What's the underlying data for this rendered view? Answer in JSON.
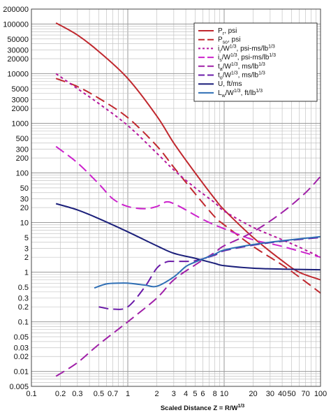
{
  "chart_data": {
    "type": "line",
    "title": "",
    "xlabel": {
      "main": "Scaled Distance   Z = R/W",
      "sup": "1/3"
    },
    "ylabel": "",
    "xscale": "log",
    "yscale": "log",
    "xlim": [
      0.1,
      100
    ],
    "ylim": [
      0.005,
      200000
    ],
    "grid": true,
    "legend_position": "top-right",
    "x_ticks": [
      {
        "value": 0.1,
        "label": "0.1"
      },
      {
        "value": 0.2,
        "label": "0.2"
      },
      {
        "value": 0.3,
        "label": "0.3"
      },
      {
        "value": 0.5,
        "label": "0.5"
      },
      {
        "value": 0.7,
        "label": "0.7"
      },
      {
        "value": 1,
        "label": "1"
      },
      {
        "value": 2,
        "label": "2"
      },
      {
        "value": 3,
        "label": "3"
      },
      {
        "value": 4,
        "label": "4"
      },
      {
        "value": 5,
        "label": "5"
      },
      {
        "value": 6,
        "label": "6"
      },
      {
        "value": 8,
        "label": "8"
      },
      {
        "value": 10,
        "label": "10"
      },
      {
        "value": 20,
        "label": "20"
      },
      {
        "value": 30,
        "label": "30"
      },
      {
        "value": 40,
        "label": "40"
      },
      {
        "value": 50,
        "label": "50"
      },
      {
        "value": 70,
        "label": "70"
      },
      {
        "value": 100,
        "label": "100"
      }
    ],
    "y_ticks": [
      {
        "value": 200000,
        "label": "200000"
      },
      {
        "value": 100000,
        "label": "100000"
      },
      {
        "value": 50000,
        "label": "50000"
      },
      {
        "value": 30000,
        "label": "30000"
      },
      {
        "value": 20000,
        "label": "20000"
      },
      {
        "value": 10000,
        "label": "10000"
      },
      {
        "value": 5000,
        "label": "5000"
      },
      {
        "value": 3000,
        "label": "3000"
      },
      {
        "value": 2000,
        "label": "2000"
      },
      {
        "value": 1000,
        "label": "1000"
      },
      {
        "value": 500,
        "label": "500"
      },
      {
        "value": 300,
        "label": "300"
      },
      {
        "value": 200,
        "label": "200"
      },
      {
        "value": 100,
        "label": "100"
      },
      {
        "value": 50,
        "label": "50"
      },
      {
        "value": 30,
        "label": "30"
      },
      {
        "value": 20,
        "label": "20"
      },
      {
        "value": 10,
        "label": "10"
      },
      {
        "value": 5,
        "label": "5"
      },
      {
        "value": 3,
        "label": "3"
      },
      {
        "value": 2,
        "label": "2"
      },
      {
        "value": 1,
        "label": "1"
      },
      {
        "value": 0.5,
        "label": "0.5"
      },
      {
        "value": 0.3,
        "label": "0.3"
      },
      {
        "value": 0.2,
        "label": "0.2"
      },
      {
        "value": 0.1,
        "label": "0.1"
      },
      {
        "value": 0.05,
        "label": "0.05"
      },
      {
        "value": 0.03,
        "label": "0.03"
      },
      {
        "value": 0.02,
        "label": "0.02"
      },
      {
        "value": 0.01,
        "label": "0.01"
      },
      {
        "value": 0.005,
        "label": "0.005"
      }
    ],
    "series": [
      {
        "key": "pr",
        "name": {
          "main": "P",
          "sub": "r",
          "rest": ", psi"
        },
        "color": "#c0282e",
        "dash": "solid",
        "points": [
          [
            0.18,
            105000
          ],
          [
            0.3,
            60000
          ],
          [
            0.5,
            28000
          ],
          [
            1,
            8000
          ],
          [
            2,
            1400
          ],
          [
            3,
            400
          ],
          [
            5,
            100
          ],
          [
            8,
            30
          ],
          [
            10,
            18
          ],
          [
            20,
            5
          ],
          [
            40,
            1.7
          ],
          [
            60,
            1.0
          ],
          [
            100,
            0.7
          ]
        ]
      },
      {
        "key": "pso",
        "name": {
          "main": "P",
          "sub": "so",
          "rest": ", psi"
        },
        "color": "#c0282e",
        "dash": "long",
        "points": [
          [
            0.18,
            8000
          ],
          [
            0.3,
            5500
          ],
          [
            0.5,
            3200
          ],
          [
            1,
            1300
          ],
          [
            2,
            350
          ],
          [
            3,
            130
          ],
          [
            5,
            38
          ],
          [
            8,
            13
          ],
          [
            10,
            9
          ],
          [
            20,
            3.3
          ],
          [
            40,
            1.4
          ],
          [
            60,
            0.8
          ],
          [
            100,
            0.38
          ]
        ]
      },
      {
        "key": "ir",
        "name": {
          "main": "i",
          "sub": "r",
          "rest": "/W",
          "sup": "1/3",
          "rest2": ", psi-ms/lb",
          "sup2": "1/3"
        },
        "color": "#b5179e",
        "dash": "short",
        "points": [
          [
            0.18,
            10000
          ],
          [
            0.3,
            5000
          ],
          [
            0.5,
            2500
          ],
          [
            1,
            900
          ],
          [
            2,
            250
          ],
          [
            3,
            115
          ],
          [
            5,
            50
          ],
          [
            8,
            25
          ],
          [
            10,
            17
          ],
          [
            20,
            8
          ],
          [
            40,
            4.5
          ],
          [
            60,
            3.2
          ],
          [
            100,
            2.0
          ]
        ]
      },
      {
        "key": "is",
        "name": {
          "main": "i",
          "sub": "s",
          "rest": "/W",
          "sup": "1/3",
          "rest2": ", psi-ms/lb",
          "sup2": "1/3"
        },
        "color": "#cc22cc",
        "dash": "long",
        "points": [
          [
            0.18,
            340
          ],
          [
            0.3,
            160
          ],
          [
            0.5,
            60
          ],
          [
            0.7,
            30
          ],
          [
            1,
            21
          ],
          [
            1.5,
            19
          ],
          [
            2,
            21
          ],
          [
            2.5,
            26
          ],
          [
            3,
            24
          ],
          [
            4,
            18
          ],
          [
            5,
            14
          ],
          [
            7,
            10
          ],
          [
            10,
            7.5
          ],
          [
            20,
            4.5
          ],
          [
            40,
            3.3
          ],
          [
            100,
            2.0
          ]
        ]
      },
      {
        "key": "ta",
        "name": {
          "main": "t",
          "sub": "a",
          "rest": "/W",
          "sup": "1/3",
          "rest2": ", ms/lb",
          "sup2": "1/3"
        },
        "color": "#a020a8",
        "dash": "long",
        "points": [
          [
            0.18,
            0.008
          ],
          [
            0.3,
            0.015
          ],
          [
            0.5,
            0.035
          ],
          [
            1,
            0.1
          ],
          [
            2,
            0.3
          ],
          [
            3,
            0.7
          ],
          [
            5,
            1.4
          ],
          [
            8,
            2.5
          ],
          [
            10,
            3.4
          ],
          [
            20,
            6.5
          ],
          [
            40,
            16
          ],
          [
            70,
            40
          ],
          [
            100,
            85
          ]
        ]
      },
      {
        "key": "to",
        "name": {
          "main": "t",
          "sub": "o",
          "rest": "/W",
          "sup": "1/3",
          "rest2": ", ms/lb",
          "sup2": "1/3"
        },
        "color": "#6a1aa8",
        "dash": "long",
        "points": [
          [
            0.5,
            0.2
          ],
          [
            0.7,
            0.18
          ],
          [
            1,
            0.2
          ],
          [
            1.5,
            0.5
          ],
          [
            2,
            1.2
          ],
          [
            2.5,
            1.6
          ],
          [
            3,
            1.65
          ],
          [
            4,
            1.65
          ],
          [
            5,
            1.7
          ],
          [
            8,
            2.2
          ],
          [
            10,
            2.7
          ],
          [
            20,
            3.5
          ],
          [
            40,
            4.2
          ],
          [
            100,
            5.0
          ]
        ]
      },
      {
        "key": "u",
        "name": {
          "main": "U, ft/ms"
        },
        "color": "#1b1f7a",
        "dash": "solid",
        "points": [
          [
            0.18,
            24
          ],
          [
            0.3,
            18
          ],
          [
            0.5,
            12
          ],
          [
            1,
            6.5
          ],
          [
            2,
            3.4
          ],
          [
            3,
            2.4
          ],
          [
            5,
            1.9
          ],
          [
            8,
            1.5
          ],
          [
            10,
            1.35
          ],
          [
            20,
            1.2
          ],
          [
            40,
            1.15
          ],
          [
            100,
            1.12
          ]
        ]
      },
      {
        "key": "lw",
        "name": {
          "main": "L",
          "sub": "w",
          "rest": "/W",
          "sup": "1/3",
          "rest2": ", ft/lb",
          "sup2": "1/3"
        },
        "color": "#2f6fb5",
        "dash": "solid",
        "points": [
          [
            0.45,
            0.48
          ],
          [
            0.6,
            0.58
          ],
          [
            0.8,
            0.6
          ],
          [
            1,
            0.6
          ],
          [
            1.5,
            0.55
          ],
          [
            2,
            0.52
          ],
          [
            3,
            0.8
          ],
          [
            4,
            1.3
          ],
          [
            5,
            1.6
          ],
          [
            8,
            2.3
          ],
          [
            10,
            2.8
          ],
          [
            20,
            3.6
          ],
          [
            40,
            4.3
          ],
          [
            100,
            5.2
          ]
        ]
      }
    ]
  }
}
